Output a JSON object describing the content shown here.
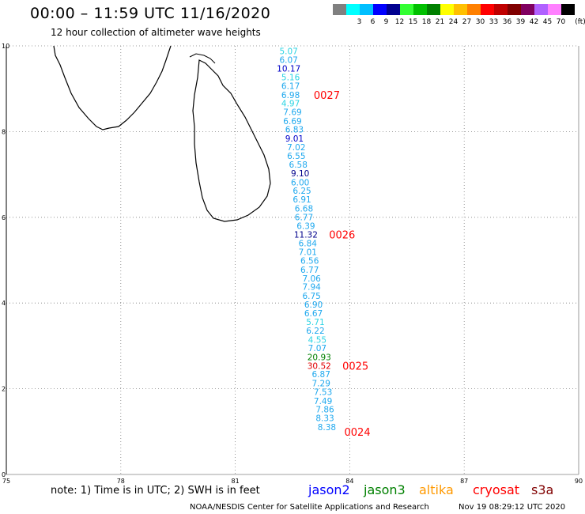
{
  "header": {
    "title": "00:00 – 11:59 UTC 11/16/2020",
    "subtitle": "12 hour collection of altimeter wave heights"
  },
  "scale": {
    "unit": "(ft)",
    "bins": [
      {
        "label": "",
        "color": "#808080"
      },
      {
        "label": "3",
        "color": "#00ffff"
      },
      {
        "label": "6",
        "color": "#00bfff"
      },
      {
        "label": "9",
        "color": "#0000ff"
      },
      {
        "label": "12",
        "color": "#000090"
      },
      {
        "label": "15",
        "color": "#33ff33"
      },
      {
        "label": "18",
        "color": "#00c000"
      },
      {
        "label": "21",
        "color": "#008000"
      },
      {
        "label": "24",
        "color": "#ffff00"
      },
      {
        "label": "27",
        "color": "#ffc000"
      },
      {
        "label": "30",
        "color": "#ff8000"
      },
      {
        "label": "33",
        "color": "#ff0000"
      },
      {
        "label": "36",
        "color": "#c00000"
      },
      {
        "label": "39",
        "color": "#800000"
      },
      {
        "label": "42",
        "color": "#800060"
      },
      {
        "label": "45",
        "color": "#b060ff"
      },
      {
        "label": "70",
        "color": "#ff80ff"
      },
      {
        "label": "",
        "color": "#000000"
      }
    ]
  },
  "chart_data": {
    "type": "scatter",
    "xlim": [
      75,
      90
    ],
    "ylim": [
      0,
      10
    ],
    "x_ticks": [
      "75",
      "78",
      "81",
      "84",
      "87",
      "90"
    ],
    "y_ticks": [
      "0",
      "2",
      "4",
      "6",
      "8",
      "10"
    ],
    "grid": true,
    "points": [
      {
        "lon": 82.4,
        "lat": 9.88,
        "value": "5.07",
        "color": "#2bd4e3"
      },
      {
        "lon": 82.4,
        "lat": 9.68,
        "value": "6.07",
        "color": "#1ea8ee"
      },
      {
        "lon": 82.4,
        "lat": 9.47,
        "value": "10.17",
        "color": "#0000c8"
      },
      {
        "lon": 82.45,
        "lat": 9.27,
        "value": "5.16",
        "color": "#2bd4e3"
      },
      {
        "lon": 82.45,
        "lat": 9.07,
        "value": "6.17",
        "color": "#1ea8ee"
      },
      {
        "lon": 82.45,
        "lat": 8.86,
        "value": "6.98",
        "color": "#1ea8ee"
      },
      {
        "lon": 82.45,
        "lat": 8.66,
        "value": "4.97",
        "color": "#2bd4e3"
      },
      {
        "lon": 82.5,
        "lat": 8.46,
        "value": "7.69",
        "color": "#1ea8ee"
      },
      {
        "lon": 82.5,
        "lat": 8.25,
        "value": "6.69",
        "color": "#1ea8ee"
      },
      {
        "lon": 82.55,
        "lat": 8.05,
        "value": "6.83",
        "color": "#1ea8ee"
      },
      {
        "lon": 82.55,
        "lat": 7.84,
        "value": "9.01",
        "color": "#0000c8"
      },
      {
        "lon": 82.6,
        "lat": 7.64,
        "value": "7.02",
        "color": "#1ea8ee"
      },
      {
        "lon": 82.6,
        "lat": 7.44,
        "value": "6.55",
        "color": "#1ea8ee"
      },
      {
        "lon": 82.65,
        "lat": 7.23,
        "value": "6.58",
        "color": "#1ea8ee"
      },
      {
        "lon": 82.7,
        "lat": 7.03,
        "value": "9.10",
        "color": "#00008b"
      },
      {
        "lon": 82.7,
        "lat": 6.82,
        "value": "6.00",
        "color": "#1ea8ee"
      },
      {
        "lon": 82.75,
        "lat": 6.62,
        "value": "6.25",
        "color": "#1ea8ee"
      },
      {
        "lon": 82.75,
        "lat": 6.42,
        "value": "6.91",
        "color": "#1ea8ee"
      },
      {
        "lon": 82.8,
        "lat": 6.21,
        "value": "6.68",
        "color": "#1ea8ee"
      },
      {
        "lon": 82.8,
        "lat": 6.01,
        "value": "6.77",
        "color": "#1ea8ee"
      },
      {
        "lon": 82.85,
        "lat": 5.8,
        "value": "6.39",
        "color": "#1ea8ee"
      },
      {
        "lon": 82.85,
        "lat": 5.6,
        "value": "11.32",
        "color": "#00008b"
      },
      {
        "lon": 82.9,
        "lat": 5.4,
        "value": "6.84",
        "color": "#1ea8ee"
      },
      {
        "lon": 82.9,
        "lat": 5.19,
        "value": "7.01",
        "color": "#1ea8ee"
      },
      {
        "lon": 82.95,
        "lat": 4.99,
        "value": "6.56",
        "color": "#1ea8ee"
      },
      {
        "lon": 82.95,
        "lat": 4.78,
        "value": "6.77",
        "color": "#1ea8ee"
      },
      {
        "lon": 83.0,
        "lat": 4.58,
        "value": "7.06",
        "color": "#1ea8ee"
      },
      {
        "lon": 83.0,
        "lat": 4.38,
        "value": "7.94",
        "color": "#1ea8ee"
      },
      {
        "lon": 83.0,
        "lat": 4.17,
        "value": "6.75",
        "color": "#1ea8ee"
      },
      {
        "lon": 83.05,
        "lat": 3.97,
        "value": "6.90",
        "color": "#1ea8ee"
      },
      {
        "lon": 83.05,
        "lat": 3.76,
        "value": "6.67",
        "color": "#1ea8ee"
      },
      {
        "lon": 83.1,
        "lat": 3.56,
        "value": "5.71",
        "color": "#2bd4e3"
      },
      {
        "lon": 83.1,
        "lat": 3.36,
        "value": "6.22",
        "color": "#1ea8ee"
      },
      {
        "lon": 83.15,
        "lat": 3.15,
        "value": "4.55",
        "color": "#2bd4e3"
      },
      {
        "lon": 83.15,
        "lat": 2.95,
        "value": "7.07",
        "color": "#1ea8ee"
      },
      {
        "lon": 83.2,
        "lat": 2.74,
        "value": "20.93",
        "color": "#008000"
      },
      {
        "lon": 83.2,
        "lat": 2.54,
        "value": "30.52",
        "color": "#e00000"
      },
      {
        "lon": 83.25,
        "lat": 2.34,
        "value": "6.87",
        "color": "#1ea8ee"
      },
      {
        "lon": 83.25,
        "lat": 2.13,
        "value": "7.29",
        "color": "#1ea8ee"
      },
      {
        "lon": 83.3,
        "lat": 1.93,
        "value": "7.53",
        "color": "#1ea8ee"
      },
      {
        "lon": 83.3,
        "lat": 1.72,
        "value": "7.49",
        "color": "#1ea8ee"
      },
      {
        "lon": 83.35,
        "lat": 1.52,
        "value": "7.86",
        "color": "#1ea8ee"
      },
      {
        "lon": 83.35,
        "lat": 1.32,
        "value": "8.33",
        "color": "#1ea8ee"
      },
      {
        "lon": 83.4,
        "lat": 1.11,
        "value": "8.38",
        "color": "#1ea8ee"
      }
    ],
    "track_times": [
      {
        "lon": 83.4,
        "lat": 8.86,
        "label": "0027"
      },
      {
        "lon": 83.8,
        "lat": 5.6,
        "label": "0026"
      },
      {
        "lon": 84.15,
        "lat": 2.54,
        "label": "0025"
      },
      {
        "lon": 84.2,
        "lat": 1.0,
        "label": "0024"
      }
    ]
  },
  "footer": {
    "note": "note:  1) Time is in UTC; 2) SWH is in feet",
    "credit": "NOAA/NESDIS Center for Satellite Applications and Research",
    "timestamp": "Nov 19 08:29:12 UTC 2020",
    "satellites": [
      {
        "name": "jason2",
        "color": "#0000ff"
      },
      {
        "name": "jason3",
        "color": "#008000"
      },
      {
        "name": "altika",
        "color": "#ff9900"
      },
      {
        "name": "cryosat",
        "color": "#ff0000"
      },
      {
        "name": "s3a",
        "color": "#800000"
      }
    ]
  },
  "colors": {
    "grid": "#808080",
    "coast": "#000000",
    "track_time": "#ff0000"
  }
}
